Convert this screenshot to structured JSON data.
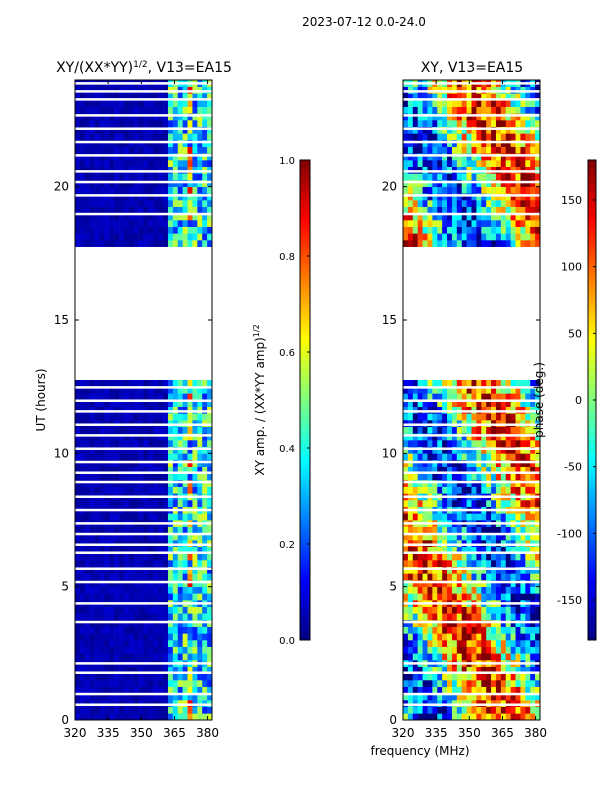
{
  "figure_title": "2023-07-12 0.0-24.0",
  "shared_xlabel": "frequency (MHz)",
  "colors": {
    "jet": [
      "#00007f",
      "#0000ff",
      "#007fff",
      "#00ffff",
      "#7fff7f",
      "#ffff00",
      "#ff7f00",
      "#ff0000",
      "#7f0000"
    ],
    "background": "#ffffff",
    "axis": "#000000"
  },
  "chart_data": [
    {
      "type": "heatmap",
      "title_main": "XY/(XX*YY)",
      "title_sup": "1/2",
      "title_tail": ", V13=EA15",
      "ylabel": "UT (hours)",
      "xlabel": "",
      "xlim": [
        320,
        382
      ],
      "ylim": [
        0,
        24
      ],
      "xticks": [
        "320",
        "335",
        "350",
        "365",
        "380"
      ],
      "xtick_values": [
        320,
        335,
        350,
        365,
        380
      ],
      "yticks": [
        "0",
        "5",
        "10",
        "15",
        "20"
      ],
      "ytick_values": [
        0,
        5,
        10,
        15,
        20
      ],
      "data_gap_hours": [
        12.8,
        17.7
      ],
      "colorbar": {
        "label_main": "XY amp. / (XX*YY amp)",
        "label_sup": "1/2",
        "range": [
          0.0,
          1.0
        ],
        "ticks": [
          "0.0",
          "0.2",
          "0.4",
          "0.6",
          "0.8",
          "1.0"
        ],
        "tick_values": [
          0.0,
          0.2,
          0.4,
          0.6,
          0.8,
          1.0
        ]
      }
    },
    {
      "type": "heatmap",
      "title_main": "XY, V13=EA15",
      "xlabel": "frequency (MHz)",
      "ylabel": "",
      "xlim": [
        320,
        382
      ],
      "ylim": [
        0,
        24
      ],
      "xticks": [
        "320",
        "335",
        "350",
        "365",
        "380"
      ],
      "xtick_values": [
        320,
        335,
        350,
        365,
        380
      ],
      "yticks": [
        "0",
        "5",
        "10",
        "15",
        "20"
      ],
      "ytick_values": [
        0,
        5,
        10,
        15,
        20
      ],
      "data_gap_hours": [
        12.8,
        17.7
      ],
      "colorbar": {
        "label_main": "phase (deg.)",
        "range": [
          -180,
          180
        ],
        "ticks": [
          "-150",
          "-100",
          "-50",
          "0",
          "50",
          "100",
          "150"
        ],
        "tick_values": [
          -150,
          -100,
          -50,
          0,
          50,
          100,
          150
        ]
      }
    }
  ]
}
